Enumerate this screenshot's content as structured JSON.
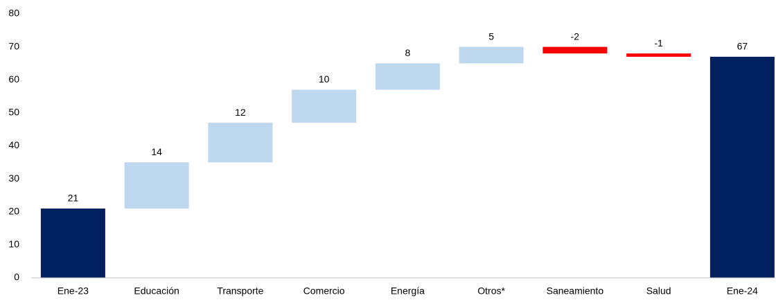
{
  "chart_data": {
    "type": "waterfall",
    "categories": [
      "Ene-23",
      "Educación",
      "Transporte",
      "Comercio",
      "Energía",
      "Otros*",
      "Saneamiento",
      "Salud",
      "Ene-24"
    ],
    "values": [
      21,
      14,
      12,
      10,
      8,
      5,
      -2,
      -1,
      67
    ],
    "is_total": [
      true,
      false,
      false,
      false,
      false,
      false,
      false,
      false,
      true
    ],
    "colors": [
      "#002060",
      "#bdd7ee",
      "#bdd7ee",
      "#bdd7ee",
      "#bdd7ee",
      "#bdd7ee",
      "#ff0000",
      "#ff0000",
      "#002060"
    ],
    "label_colors": [
      "#000000",
      "#1f4e79",
      "#1f4e79",
      "#1f4e79",
      "#1f4e79",
      "#2e75b6",
      "#ff0000",
      "#ff0000",
      "#000000"
    ],
    "ylim": [
      0,
      80
    ],
    "yticks": [
      0,
      10,
      20,
      30,
      40,
      50,
      60,
      70,
      80
    ],
    "grid": false
  }
}
